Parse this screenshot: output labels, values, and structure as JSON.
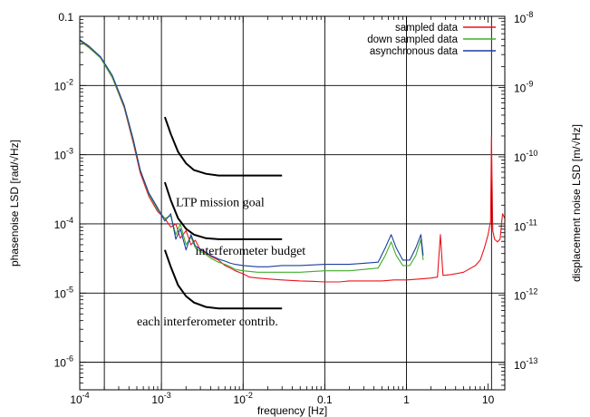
{
  "chart_data": {
    "type": "line",
    "xlabel": "frequency [Hz]",
    "ylabel": "phasenoise LSD [rad/√Hz]",
    "y2label": "displacement noise LSD [m/√Hz]",
    "xscale": "log",
    "yscale": "log",
    "xlim": [
      0.0001,
      16
    ],
    "ylim": [
      4e-07,
      0.1
    ],
    "y2lim": [
      4.3e-14,
      1.07e-08
    ],
    "grid": true,
    "legend_position": "top-right",
    "x_ticks": [
      {
        "value": 0.0001,
        "base": "10",
        "exp": "-4"
      },
      {
        "value": 0.001,
        "base": "10",
        "exp": "-3"
      },
      {
        "value": 0.01,
        "base": "10",
        "exp": "-2"
      },
      {
        "value": 0.1,
        "base": "0.1",
        "exp": ""
      },
      {
        "value": 1,
        "base": "1",
        "exp": ""
      },
      {
        "value": 10,
        "base": "10",
        "exp": ""
      }
    ],
    "y_ticks": [
      {
        "value": 0.1,
        "base": "0.1",
        "exp": ""
      },
      {
        "value": 0.01,
        "base": "10",
        "exp": "-2"
      },
      {
        "value": 0.001,
        "base": "10",
        "exp": "-3"
      },
      {
        "value": 0.0001,
        "base": "10",
        "exp": "-4"
      },
      {
        "value": 1e-05,
        "base": "10",
        "exp": "-5"
      },
      {
        "value": 1e-06,
        "base": "10",
        "exp": "-6"
      }
    ],
    "y2_ticks": [
      {
        "value": 1e-08,
        "base": "10",
        "exp": "-8"
      },
      {
        "value": 1e-09,
        "base": "10",
        "exp": "-9"
      },
      {
        "value": 1e-10,
        "base": "10",
        "exp": "-10"
      },
      {
        "value": 1e-11,
        "base": "10",
        "exp": "-11"
      },
      {
        "value": 1e-12,
        "base": "10",
        "exp": "-12"
      },
      {
        "value": 1e-13,
        "base": "10",
        "exp": "-13"
      }
    ],
    "vertical_lines_x": [
      0.0002,
      0.001,
      0.01,
      0.1,
      1,
      11
    ],
    "series": [
      {
        "name": "sampled data",
        "color": "#e8141c",
        "points": [
          [
            0.0001,
            0.045
          ],
          [
            0.00013,
            0.036
          ],
          [
            0.00018,
            0.025
          ],
          [
            0.00025,
            0.013
          ],
          [
            0.00035,
            0.0048
          ],
          [
            0.00045,
            0.0015
          ],
          [
            0.00055,
            0.00055
          ],
          [
            0.0007,
            0.00025
          ],
          [
            0.0009,
            0.00015
          ],
          [
            0.0011,
            0.00012
          ],
          [
            0.0013,
            9e-05
          ],
          [
            0.0015,
            0.0001
          ],
          [
            0.0017,
            6.2e-05
          ],
          [
            0.002,
            8e-05
          ],
          [
            0.0023,
            5e-05
          ],
          [
            0.0026,
            5.8e-05
          ],
          [
            0.003,
            4.2e-05
          ],
          [
            0.0035,
            3.8e-05
          ],
          [
            0.004,
            3.4e-05
          ],
          [
            0.005,
            3e-05
          ],
          [
            0.006,
            2.5e-05
          ],
          [
            0.007,
            2.3e-05
          ],
          [
            0.008,
            2.1e-05
          ],
          [
            0.01,
            1.9e-05
          ],
          [
            0.012,
            1.7e-05
          ],
          [
            0.015,
            1.65e-05
          ],
          [
            0.02,
            1.6e-05
          ],
          [
            0.03,
            1.55e-05
          ],
          [
            0.05,
            1.5e-05
          ],
          [
            0.07,
            1.48e-05
          ],
          [
            0.1,
            1.45e-05
          ],
          [
            0.15,
            1.45e-05
          ],
          [
            0.2,
            1.5e-05
          ],
          [
            0.3,
            1.5e-05
          ],
          [
            0.5,
            1.5e-05
          ],
          [
            0.7,
            1.55e-05
          ],
          [
            1,
            1.55e-05
          ],
          [
            1.5,
            1.6e-05
          ],
          [
            2,
            1.65e-05
          ],
          [
            2.4,
            1.7e-05
          ],
          [
            2.6,
            7e-05
          ],
          [
            2.8,
            1.8e-05
          ],
          [
            3.5,
            1.85e-05
          ],
          [
            5,
            2e-05
          ],
          [
            7,
            2.5e-05
          ],
          [
            8,
            3e-05
          ],
          [
            9,
            4.5e-05
          ],
          [
            10,
            7e-05
          ],
          [
            10.7,
            0.00011
          ],
          [
            11,
            0.0018
          ],
          [
            11.4,
            8e-05
          ],
          [
            12,
            6e-05
          ],
          [
            13,
            5.5e-05
          ],
          [
            14,
            6e-05
          ],
          [
            15,
            0.00014
          ],
          [
            16,
            0.00012
          ]
        ]
      },
      {
        "name": "down sampled data",
        "color": "#3fae2a",
        "points": [
          [
            0.0001,
            0.044
          ],
          [
            0.00013,
            0.035
          ],
          [
            0.00018,
            0.025
          ],
          [
            0.00025,
            0.013
          ],
          [
            0.00035,
            0.005
          ],
          [
            0.00045,
            0.0016
          ],
          [
            0.00055,
            0.0006
          ],
          [
            0.0007,
            0.00027
          ],
          [
            0.0009,
            0.00016
          ],
          [
            0.0011,
            0.00012
          ],
          [
            0.0013,
            0.00013
          ],
          [
            0.0015,
            7e-05
          ],
          [
            0.0017,
            0.0001
          ],
          [
            0.002,
            5e-05
          ],
          [
            0.0023,
            6.5e-05
          ],
          [
            0.0026,
            4.5e-05
          ],
          [
            0.003,
            4e-05
          ],
          [
            0.0035,
            3.6e-05
          ],
          [
            0.004,
            3.2e-05
          ],
          [
            0.005,
            2.8e-05
          ],
          [
            0.006,
            2.6e-05
          ],
          [
            0.007,
            2.4e-05
          ],
          [
            0.008,
            2.2e-05
          ],
          [
            0.01,
            2.1e-05
          ],
          [
            0.015,
            2e-05
          ],
          [
            0.02,
            2e-05
          ],
          [
            0.03,
            2e-05
          ],
          [
            0.05,
            2e-05
          ],
          [
            0.1,
            2.1e-05
          ],
          [
            0.2,
            2.1e-05
          ],
          [
            0.3,
            2.2e-05
          ],
          [
            0.45,
            2.3e-05
          ],
          [
            0.55,
            3.5e-05
          ],
          [
            0.65,
            5.5e-05
          ],
          [
            0.75,
            3.5e-05
          ],
          [
            0.9,
            2.5e-05
          ],
          [
            1.1,
            2.5e-05
          ],
          [
            1.3,
            3.5e-05
          ],
          [
            1.5,
            6e-05
          ],
          [
            1.6,
            3e-05
          ]
        ]
      },
      {
        "name": "asynchronous data",
        "color": "#1b3f9e",
        "points": [
          [
            0.0001,
            0.046
          ],
          [
            0.00013,
            0.037
          ],
          [
            0.00018,
            0.026
          ],
          [
            0.00025,
            0.014
          ],
          [
            0.00035,
            0.0052
          ],
          [
            0.00045,
            0.0017
          ],
          [
            0.00055,
            0.0006
          ],
          [
            0.0007,
            0.00028
          ],
          [
            0.0009,
            0.00017
          ],
          [
            0.0011,
            0.00011
          ],
          [
            0.0013,
            0.00014
          ],
          [
            0.0015,
            6e-05
          ],
          [
            0.0017,
            8.5e-05
          ],
          [
            0.002,
            4.2e-05
          ],
          [
            0.0023,
            7e-05
          ],
          [
            0.0026,
            4.8e-05
          ],
          [
            0.003,
            4.3e-05
          ],
          [
            0.0035,
            3.9e-05
          ],
          [
            0.004,
            3.5e-05
          ],
          [
            0.005,
            3.1e-05
          ],
          [
            0.006,
            2.9e-05
          ],
          [
            0.007,
            2.7e-05
          ],
          [
            0.008,
            2.6e-05
          ],
          [
            0.01,
            2.5e-05
          ],
          [
            0.015,
            2.4e-05
          ],
          [
            0.02,
            2.4e-05
          ],
          [
            0.03,
            2.5e-05
          ],
          [
            0.05,
            2.5e-05
          ],
          [
            0.1,
            2.6e-05
          ],
          [
            0.2,
            2.6e-05
          ],
          [
            0.3,
            2.7e-05
          ],
          [
            0.45,
            2.8e-05
          ],
          [
            0.55,
            4.5e-05
          ],
          [
            0.65,
            7e-05
          ],
          [
            0.75,
            4.5e-05
          ],
          [
            0.9,
            3e-05
          ],
          [
            1.1,
            3e-05
          ],
          [
            1.3,
            4.5e-05
          ],
          [
            1.5,
            7e-05
          ],
          [
            1.6,
            3.5e-05
          ]
        ]
      }
    ],
    "reference_curves": [
      {
        "color": "#000000",
        "points": [
          [
            0.0011,
            0.0035
          ],
          [
            0.0013,
            0.002
          ],
          [
            0.0016,
            0.0011
          ],
          [
            0.002,
            0.00075
          ],
          [
            0.0025,
            0.0006
          ],
          [
            0.0035,
            0.00053
          ],
          [
            0.005,
            0.0005
          ],
          [
            0.01,
            0.0005
          ],
          [
            0.03,
            0.0005
          ]
        ]
      },
      {
        "color": "#000000",
        "points": [
          [
            0.0011,
            0.0004
          ],
          [
            0.0013,
            0.00022
          ],
          [
            0.0016,
            0.00012
          ],
          [
            0.002,
            8.5e-05
          ],
          [
            0.0025,
            7e-05
          ],
          [
            0.0035,
            6.2e-05
          ],
          [
            0.005,
            6e-05
          ],
          [
            0.01,
            6e-05
          ],
          [
            0.03,
            6e-05
          ]
        ]
      },
      {
        "color": "#000000",
        "points": [
          [
            0.0011,
            4.2e-05
          ],
          [
            0.0013,
            2.4e-05
          ],
          [
            0.0016,
            1.3e-05
          ],
          [
            0.002,
            9e-06
          ],
          [
            0.0025,
            7.3e-06
          ],
          [
            0.0035,
            6.3e-06
          ],
          [
            0.005,
            6e-06
          ],
          [
            0.01,
            6e-06
          ],
          [
            0.03,
            6e-06
          ]
        ]
      }
    ],
    "annotations": [
      {
        "text": "LTP mission goal",
        "x": 0.0015,
        "y": 0.00018
      },
      {
        "text": "interferometer budget",
        "x": 0.0026,
        "y": 3.6e-05
      },
      {
        "text": "each interferometer contrib.",
        "x": 0.0005,
        "y": 3.4e-06
      }
    ]
  }
}
